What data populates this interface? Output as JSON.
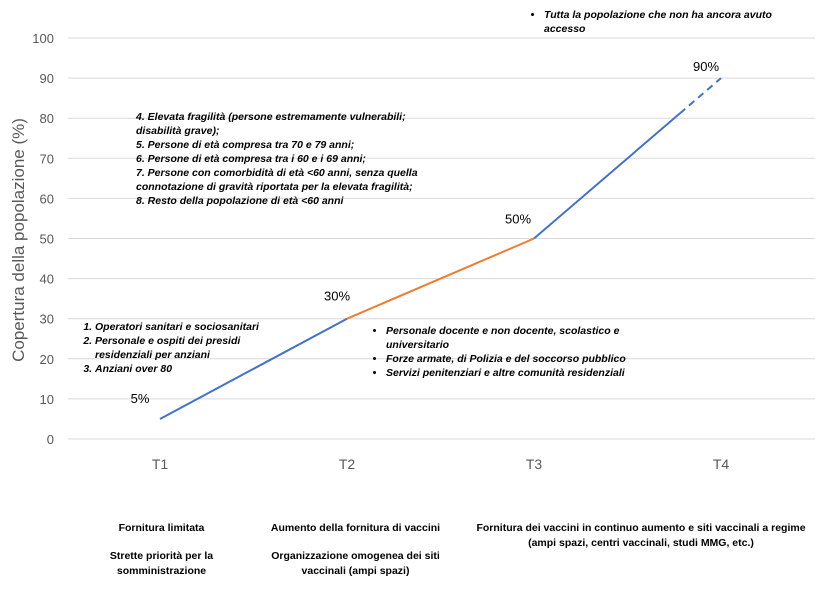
{
  "chart_data": {
    "type": "line",
    "ylabel": "Copertura della popolazione (%)",
    "xlabel": "",
    "ylim": [
      0,
      100
    ],
    "yticks": [
      0,
      10,
      20,
      30,
      40,
      50,
      60,
      70,
      80,
      90,
      100
    ],
    "categories": [
      "T1",
      "T2",
      "T3",
      "T4"
    ],
    "grid": true,
    "points": [
      {
        "x": "T1",
        "y": 5,
        "label": "5%"
      },
      {
        "x": "T2",
        "y": 30,
        "label": "30%"
      },
      {
        "x": "T3",
        "y": 50,
        "label": "50%"
      },
      {
        "x": "T4",
        "y": 90,
        "label": "90%"
      }
    ],
    "segments": [
      {
        "from": "T1",
        "to": "T2",
        "color": "#4472C4",
        "style": "solid"
      },
      {
        "from": "T2",
        "to": "T3",
        "color": "#ED7D31",
        "style": "solid"
      },
      {
        "from": "T3",
        "to": "T4",
        "color": "#4472C4",
        "style": "solid then dashed"
      }
    ]
  },
  "annotations": {
    "phase1_list": [
      "Operatori sanitari e sociosanitari",
      "Personale e ospiti dei presidi residenziali per anziani",
      "Anziani over 80"
    ],
    "phase2_list": [
      "Personale docente e non docente, scolastico e universitario",
      "Forze armate, di Polizia e del soccorso pubblico",
      "Servizi penitenziari e altre comunità residenziali"
    ],
    "phase3_lines": [
      "4. Elevata fragilità (persone estremamente vulnerabili; disabilità grave);",
      "5. Persone di età compresa tra 70 e 79 anni;",
      "6. Persone di età compresa tra i 60 e i 69 anni;",
      "7. Persone con comorbidità di età <60 anni, senza quella connotazione di gravità riportata per la elevata fragilità;",
      "8. Resto della popolazione di età <60 anni"
    ],
    "phase4_list": [
      "Tutta la popolazione che non ha ancora avuto accesso"
    ]
  },
  "bottom_labels": {
    "col1": {
      "line1": "Fornitura limitata",
      "line2": "Strette priorità per la somministrazione"
    },
    "col2": {
      "line1": "Aumento della fornitura di vaccini",
      "line2": "Organizzazione omogenea dei siti vaccinali (ampi spazi)"
    },
    "col3": {
      "line1": "Fornitura dei vaccini in continuo aumento e siti vaccinali a regime (ampi spazi, centri vaccinali, studi MMG, etc.)"
    }
  },
  "colors": {
    "series_blue": "#4472C4",
    "series_orange": "#ED7D31",
    "grid": "#D9D9D9",
    "text_gray": "#595959"
  }
}
